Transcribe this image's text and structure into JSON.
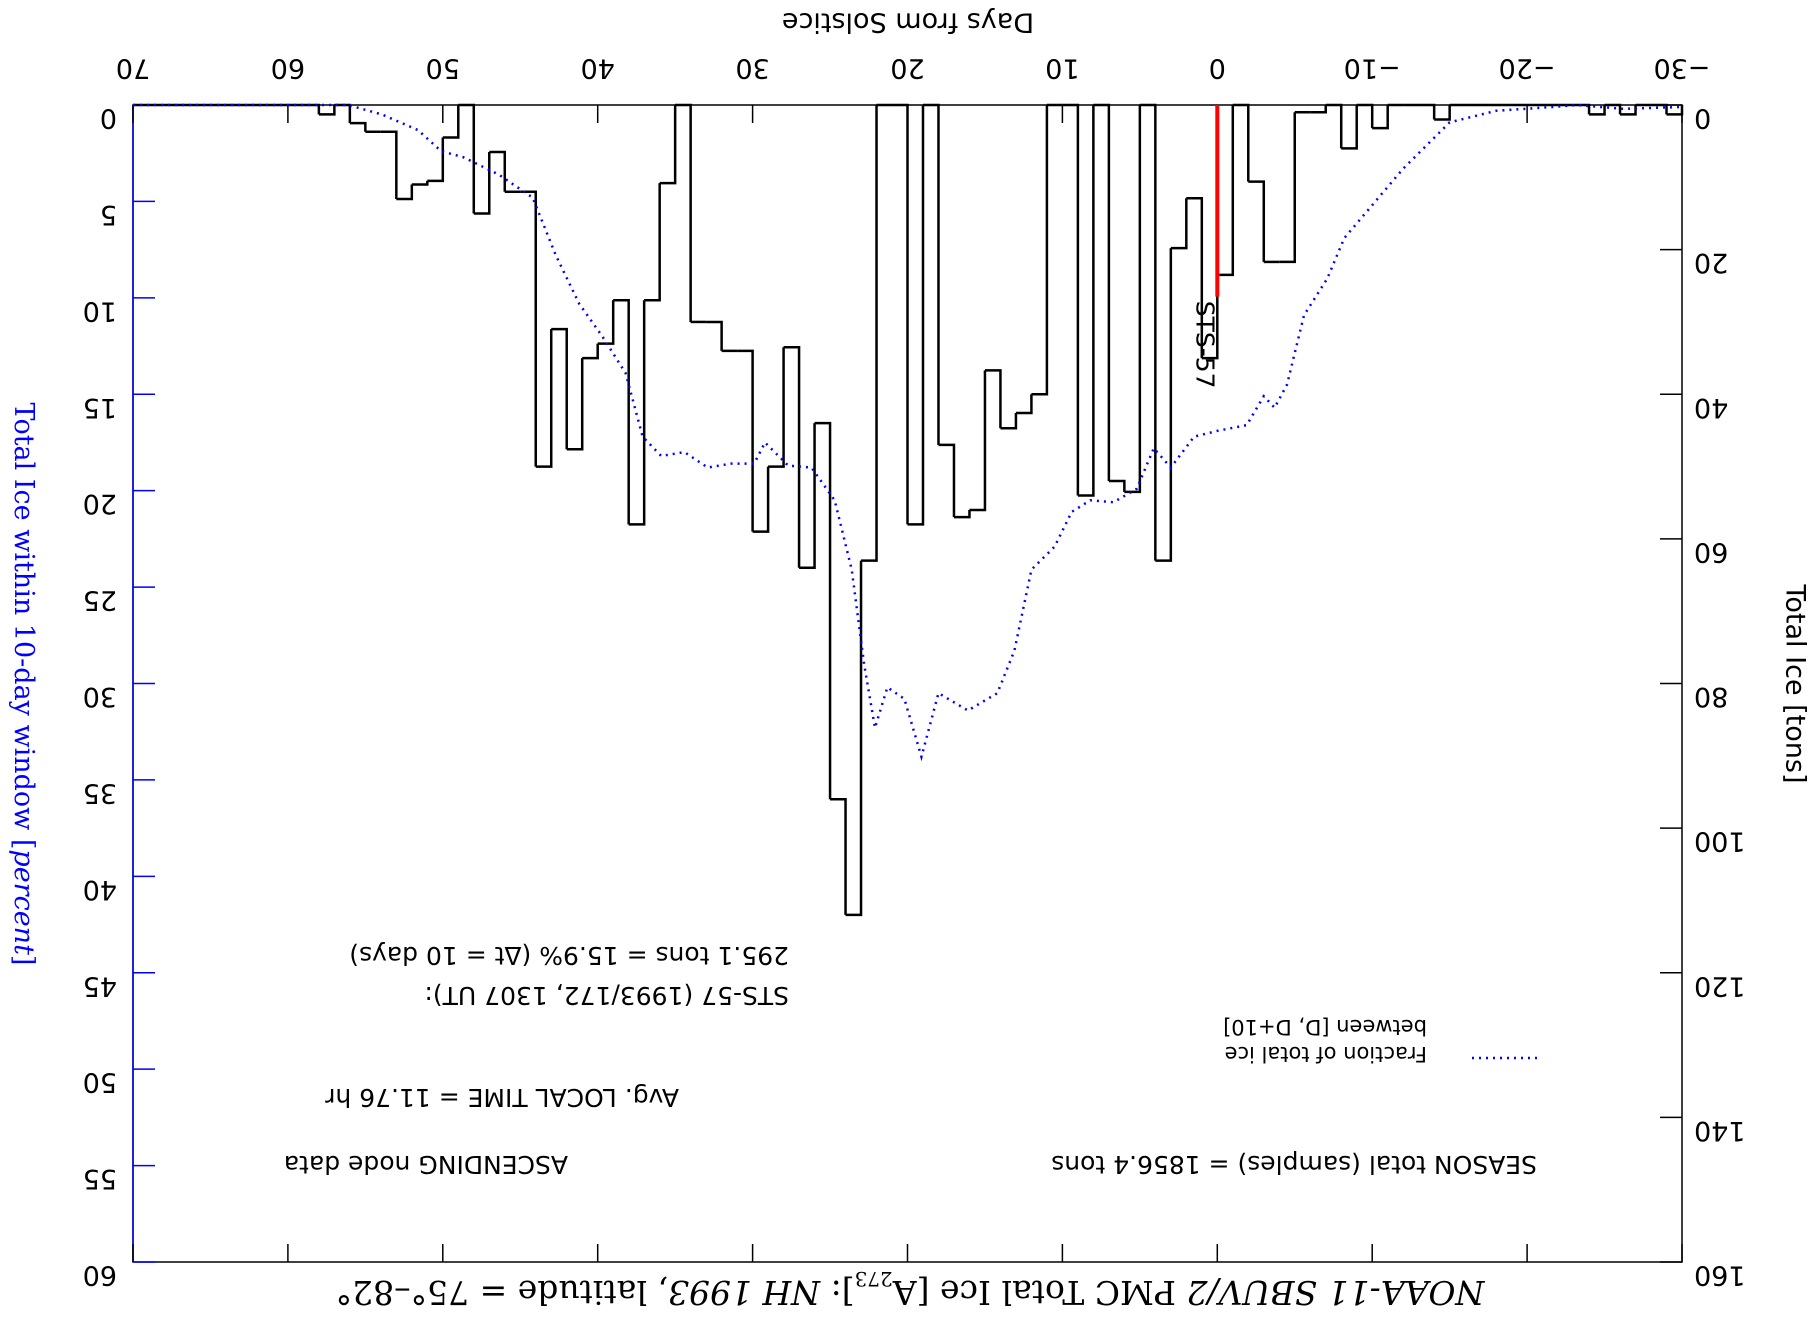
{
  "chart_data": {
    "type": "histogram",
    "title_parts": [
      "NOAA-11 SBUV/2",
      " PMC Total Ice [A",
      "273",
      "]:  ",
      "NH 1993",
      ", latitude = 75°–82°"
    ],
    "xlabel": "Days from Solstice",
    "ylabel": "Total Ice [tons]",
    "y2label_parts": [
      "Total Ice within 10-day window [",
      "percent",
      "]"
    ],
    "bins": [
      -30,
      -29,
      -28,
      -27,
      -26,
      -25,
      -24,
      -23,
      -22,
      -21,
      -20,
      -19,
      -18,
      -17,
      -16,
      -15,
      -14,
      -13,
      -12,
      -11,
      -10,
      -9,
      -8,
      -7,
      -6,
      -5,
      -4,
      -3,
      -2,
      -1,
      0,
      1,
      2,
      3,
      4,
      5,
      6,
      7,
      8,
      9,
      10,
      11,
      12,
      13,
      14,
      15,
      16,
      17,
      18,
      19,
      20,
      21,
      22,
      23,
      24,
      25,
      26,
      27,
      28,
      29,
      30,
      31,
      32,
      33,
      34,
      35,
      36,
      37,
      38,
      39,
      40,
      41,
      42,
      43,
      44,
      45,
      46,
      47,
      48,
      49,
      50,
      51,
      52,
      53,
      54,
      55,
      56,
      57,
      58,
      59,
      60,
      61,
      62,
      63,
      64,
      65,
      66,
      67,
      68,
      69,
      70
    ],
    "counts": [
      1.3,
      0,
      0,
      1.3,
      0,
      1.3,
      0,
      0,
      0,
      0,
      0,
      0,
      0,
      0,
      0,
      2,
      0,
      0,
      0,
      3.2,
      0,
      6,
      0,
      1,
      1,
      21.7,
      21.7,
      10.6,
      0,
      23.5,
      35,
      12.9,
      19.8,
      63,
      0,
      53.5,
      52,
      0,
      54,
      0,
      0,
      40,
      42.6,
      44.7,
      36.7,
      56,
      57,
      47,
      0,
      58,
      0,
      0,
      63,
      112,
      96,
      44,
      64,
      33.5,
      50,
      59,
      34,
      34,
      30,
      30,
      0,
      10.8,
      27,
      58,
      27,
      33,
      35,
      47.6,
      31,
      50,
      12,
      12,
      6.5,
      15,
      0,
      4.5,
      10.5,
      11,
      13,
      3.7,
      3.7,
      2.5,
      0,
      1.3,
      0,
      0,
      0,
      0,
      0,
      0,
      0,
      0,
      0,
      0,
      0,
      0
    ],
    "color": "#000000",
    "series": [
      {
        "name": "Fraction of total ice",
        "name2": "between [D, D+10]",
        "color": "#0000ff",
        "axis": "y2",
        "x": [
          70,
          59.9,
          56.1,
          53.9,
          51.6,
          50.1,
          48.7,
          46.4,
          44.2,
          42.7,
          41.2,
          39.7,
          38.2,
          37.1,
          35.9,
          34.4,
          32.9,
          31.4,
          29.9,
          29.2,
          27.7,
          26.2,
          24.7,
          23.6,
          22.8,
          22.1,
          21.3,
          20.2,
          19.1,
          18,
          16.1,
          14.2,
          13.1,
          12,
          10.5,
          9.4,
          8.2,
          6.7,
          5.2,
          4.1,
          3,
          1.5,
          0,
          -1.9,
          -3,
          -3.7,
          -4.5,
          -5.6,
          -7.1,
          -8.2,
          -10.1,
          -12,
          -13.5,
          -15,
          -18,
          -21.7,
          -23.2,
          -26.2,
          -30
        ],
        "values": [
          0,
          0,
          0,
          0.5,
          1.3,
          2.4,
          2.7,
          3.6,
          4.8,
          7.8,
          10.3,
          12,
          13.9,
          17.2,
          18.2,
          18,
          18.8,
          18.6,
          18.6,
          17.5,
          18.7,
          18.8,
          20.5,
          24.1,
          29,
          32.3,
          30.2,
          30.8,
          33.8,
          30.5,
          31.4,
          30.5,
          28.3,
          24.1,
          22.9,
          21.1,
          20.5,
          20.6,
          19.9,
          17.8,
          18.8,
          17.2,
          16.9,
          16.6,
          15.1,
          15.7,
          14.5,
          10.9,
          9,
          6.9,
          5.1,
          3.3,
          2.1,
          0.9,
          0.3,
          0.1,
          0,
          0.2,
          0.1
        ]
      }
    ],
    "marker": {
      "label": "STS-57",
      "x": 0,
      "y": [
        0,
        26.5
      ],
      "color": "#ff0000"
    },
    "annotations": [
      "SEASON total (samples) = 1856.4 tons",
      "ASCENDING node data",
      "Avg. LOCAL TIME = 11.76 hr",
      "STS-57 (1993/172, 1307 UT):",
      "295.1 tons = 15.9% (Δt = 10 days)"
    ],
    "xlim": [
      -30,
      70
    ],
    "xticks": [
      {
        "value": -30,
        "label": "−30"
      },
      {
        "value": -20,
        "label": "−20"
      },
      {
        "value": -10,
        "label": "−10"
      },
      0,
      10,
      20,
      30,
      40,
      50,
      60,
      70
    ],
    "ylim": [
      0,
      160
    ],
    "yticks": [
      0,
      20,
      40,
      60,
      80,
      100,
      120,
      140,
      160
    ],
    "y2lim": [
      0,
      60
    ],
    "y2ticks": [
      0,
      5,
      10,
      15,
      20,
      25,
      30,
      35,
      40,
      45,
      50,
      55,
      60
    ],
    "y2color": "#0000ff",
    "rotation": 180
  }
}
